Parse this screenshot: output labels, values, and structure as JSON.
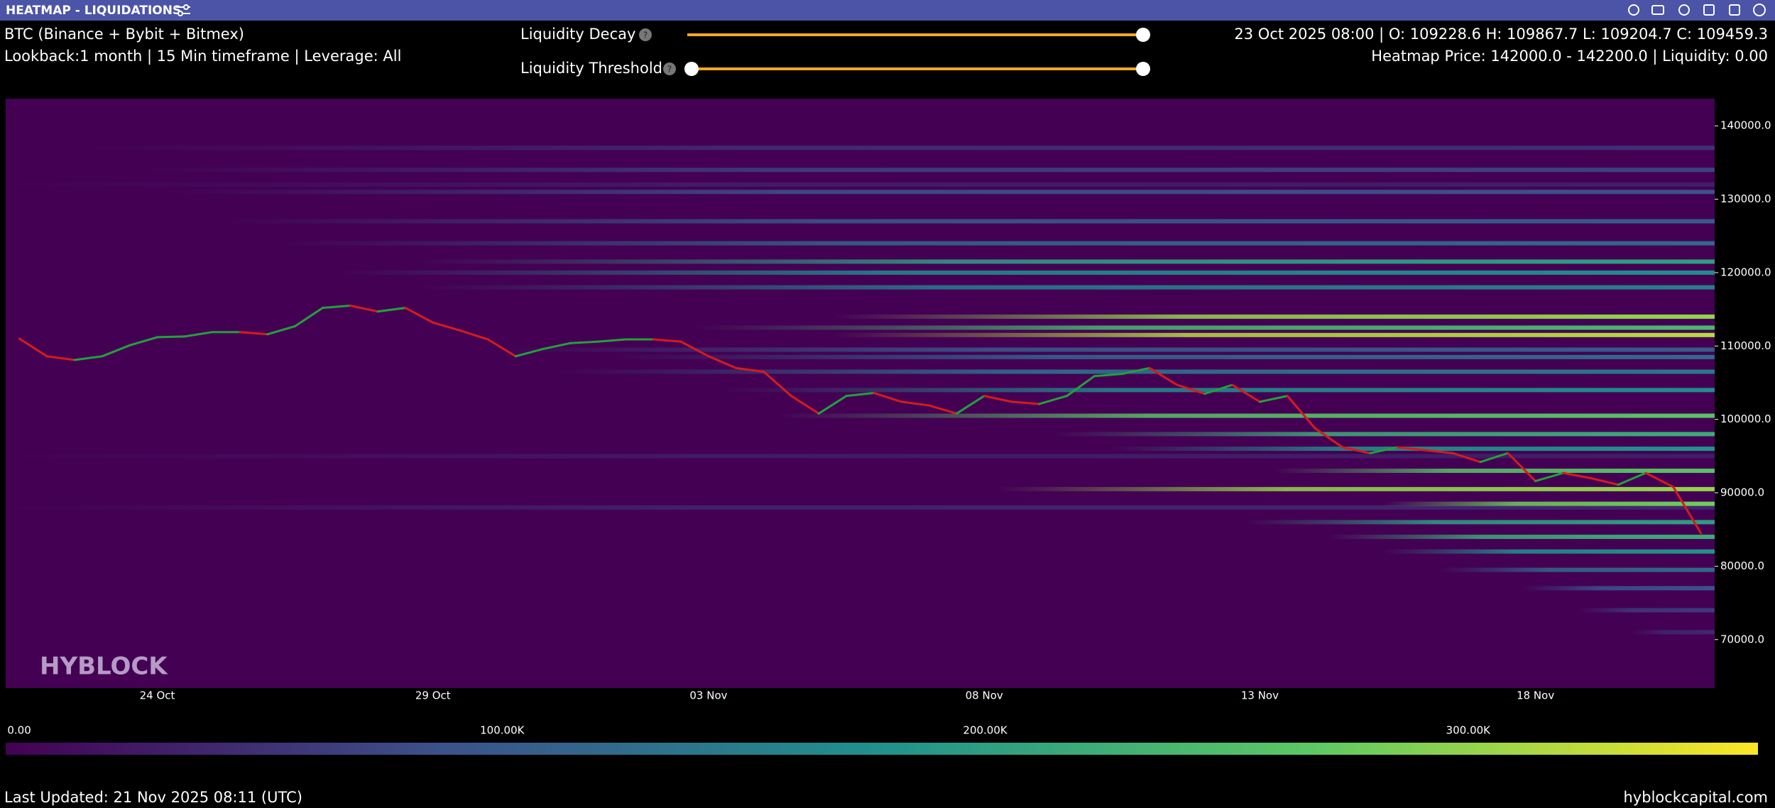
{
  "window": {
    "title": "HEATMAP - LIQUIDATIONS"
  },
  "info": {
    "source": "BTC (Binance + Bybit + Bitmex)",
    "settings": "Lookback:1 month | 15 Min timeframe | Leverage: All",
    "ohlc": "23 Oct 2025 08:00 | O: 109228.6 H: 109867.7 L: 109204.7 C: 109459.3",
    "heatmap_info": "Heatmap Price: 142000.0 - 142200.0 | Liquidity: 0.00"
  },
  "controls": {
    "decay_label": "Liquidity Decay",
    "threshold_label": "Liquidity Threshold",
    "help": "?"
  },
  "chart_data": {
    "type": "heatmap",
    "watermark": "HYBLOCK",
    "categories": [
      null,
      null,
      null,
      null,
      null,
      "24 Oct",
      null,
      null,
      null,
      null,
      null,
      null,
      null,
      null,
      null,
      "29 Oct",
      null,
      null,
      null,
      null,
      null,
      null,
      null,
      null,
      null,
      "03 Nov",
      null,
      null,
      null,
      null,
      null,
      null,
      null,
      null,
      null,
      "08 Nov",
      null,
      null,
      null,
      null,
      null,
      null,
      null,
      null,
      null,
      "13 Nov",
      null,
      null,
      null,
      null,
      null,
      null,
      null,
      null,
      null,
      "18 Nov",
      null,
      null,
      null,
      null,
      null,
      null
    ],
    "values": [
      111000,
      108600,
      108100,
      108600,
      110100,
      111200,
      111300,
      111900,
      111900,
      111600,
      112700,
      115200,
      115500,
      114700,
      115200,
      113200,
      112100,
      110900,
      108600,
      109600,
      110400,
      110600,
      110900,
      110900,
      110600,
      108600,
      107000,
      106500,
      103200,
      100800,
      103200,
      103600,
      102400,
      101900,
      100800,
      103200,
      102400,
      102100,
      103200,
      105900,
      106200,
      107000,
      104700,
      103500,
      104700,
      102400,
      103200,
      98800,
      96200,
      95400,
      96200,
      95800,
      95400,
      94200,
      95400,
      91600,
      92700,
      92000,
      91100,
      92700,
      90800,
      84500
    ],
    "up_color": "#23a03c",
    "down_color": "#d41c1c",
    "background": "#440154",
    "ylim": [
      63400,
      143700
    ],
    "yticks": [
      {
        "value": 140000,
        "label": "140000.0"
      },
      {
        "value": 130000,
        "label": "130000.0"
      },
      {
        "value": 120000,
        "label": "120000.0"
      },
      {
        "value": 110000,
        "label": "110000.0"
      },
      {
        "value": 100000,
        "label": "100000.0"
      },
      {
        "value": 90000,
        "label": "90000.0"
      },
      {
        "value": 80000,
        "label": "80000.0"
      },
      {
        "value": 70000,
        "label": "70000.0"
      }
    ],
    "bands": [
      {
        "price": 132000,
        "liquidity": 30000,
        "start": 0
      },
      {
        "price": 95000,
        "liquidity": 30000,
        "start": 0
      },
      {
        "price": 88000,
        "liquidity": 40000,
        "start": 0
      },
      {
        "price": 137000,
        "liquidity": 50000,
        "start": 3
      },
      {
        "price": 134000,
        "liquidity": 70000,
        "start": 5
      },
      {
        "price": 131000,
        "liquidity": 90000,
        "start": 6
      },
      {
        "price": 127000,
        "liquidity": 100000,
        "start": 8
      },
      {
        "price": 124000,
        "liquidity": 120000,
        "start": 10
      },
      {
        "price": 118000,
        "liquidity": 150000,
        "start": 15
      },
      {
        "price": 120000,
        "liquidity": 170000,
        "start": 12
      },
      {
        "price": 121500,
        "liquidity": 200000,
        "start": 15
      },
      {
        "price": 109500,
        "liquidity": 100000,
        "start": 18
      },
      {
        "price": 108500,
        "liquidity": 120000,
        "start": 22
      },
      {
        "price": 106500,
        "liquidity": 140000,
        "start": 20
      },
      {
        "price": 104000,
        "liquidity": 170000,
        "start": 26
      },
      {
        "price": 112500,
        "liquidity": 240000,
        "start": 25
      },
      {
        "price": 114000,
        "liquidity": 300000,
        "start": 30
      },
      {
        "price": 111500,
        "liquidity": 320000,
        "start": 30
      },
      {
        "price": 71000,
        "liquidity": 40000,
        "start": 59
      },
      {
        "price": 74000,
        "liquidity": 60000,
        "start": 57
      },
      {
        "price": 77000,
        "liquidity": 90000,
        "start": 55
      },
      {
        "price": 79500,
        "liquidity": 120000,
        "start": 52
      },
      {
        "price": 82000,
        "liquidity": 180000,
        "start": 50
      },
      {
        "price": 84000,
        "liquidity": 220000,
        "start": 48
      },
      {
        "price": 86000,
        "liquidity": 200000,
        "start": 45
      },
      {
        "price": 96000,
        "liquidity": 180000,
        "start": 40
      },
      {
        "price": 98000,
        "liquidity": 220000,
        "start": 38
      },
      {
        "price": 100500,
        "liquidity": 260000,
        "start": 28
      },
      {
        "price": 88500,
        "liquidity": 280000,
        "start": 50
      },
      {
        "price": 93000,
        "liquidity": 260000,
        "start": 46
      },
      {
        "price": 90500,
        "liquidity": 300000,
        "start": 36
      }
    ],
    "colorbar": {
      "lim": [
        -2800,
        360000
      ],
      "ticks": [
        {
          "value": 0,
          "label": "0.00"
        },
        {
          "value": 100000,
          "label": "100.00K"
        },
        {
          "value": 200000,
          "label": "200.00K"
        },
        {
          "value": 300000,
          "label": "300.00K"
        }
      ]
    }
  },
  "footer": {
    "updated": "Last Updated: 21 Nov 2025 08:11 (UTC)",
    "site": "hyblockcapital.com"
  }
}
